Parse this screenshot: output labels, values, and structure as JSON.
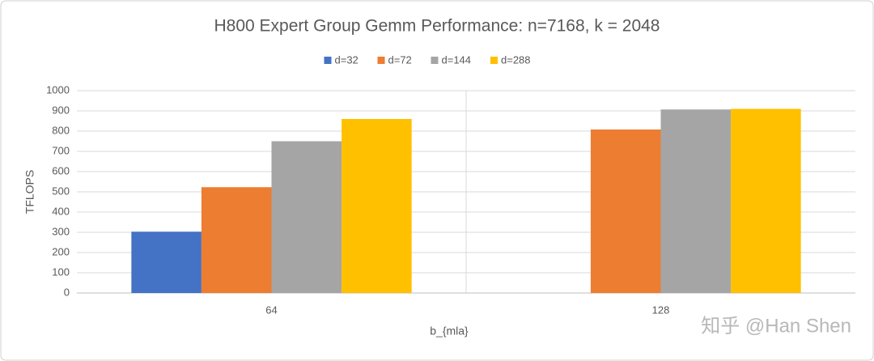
{
  "chart_data": {
    "type": "bar",
    "title": "H800 Expert Group Gemm Performance: n=7168, k = 2048",
    "x_label": "b_{mla}",
    "y_label": "TFLOPS",
    "categories": [
      "64",
      "128"
    ],
    "series": [
      {
        "name": "d=32",
        "color": "#4472c4",
        "values": [
          303,
          null
        ]
      },
      {
        "name": "d=72",
        "color": "#ed7d31",
        "values": [
          523,
          808
        ]
      },
      {
        "name": "d=144",
        "color": "#a5a5a5",
        "values": [
          750,
          907
        ]
      },
      {
        "name": "d=288",
        "color": "#ffc000",
        "values": [
          860,
          910
        ]
      }
    ],
    "ylim": [
      0,
      1000
    ],
    "yticks": [
      0,
      100,
      200,
      300,
      400,
      500,
      600,
      700,
      800,
      900,
      1000
    ],
    "grid": true,
    "legend": "top",
    "watermark": "知乎 @Han Shen"
  }
}
